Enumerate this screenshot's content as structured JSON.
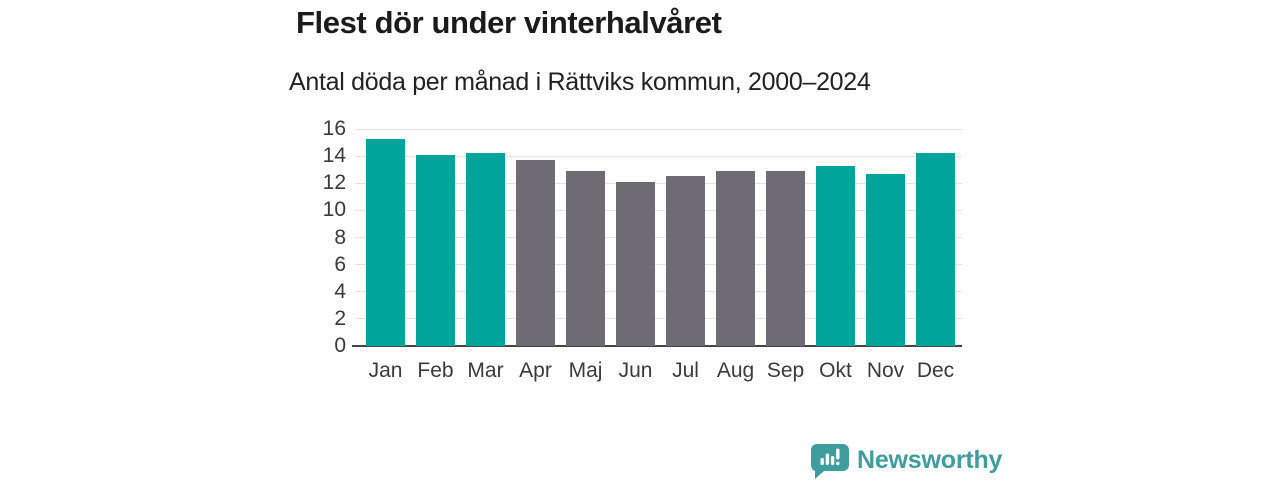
{
  "header": {
    "title": "Flest dör under vinterhalvåret",
    "subtitle": "Antal döda per månad i Rättviks kommun, 2000–2024"
  },
  "chart_data": {
    "type": "bar",
    "title": "Flest dör under vinterhalvåret",
    "subtitle": "Antal döda per månad i Rättviks kommun, 2000–2024",
    "categories": [
      "Jan",
      "Feb",
      "Mar",
      "Apr",
      "Maj",
      "Jun",
      "Jul",
      "Aug",
      "Sep",
      "Okt",
      "Nov",
      "Dec"
    ],
    "values": [
      15.3,
      14.1,
      14.2,
      13.7,
      12.9,
      12.1,
      12.5,
      12.9,
      12.9,
      13.3,
      12.7,
      14.2
    ],
    "bar_colors": [
      "#00a49b",
      "#00a49b",
      "#00a49b",
      "#6e6b74",
      "#6e6b74",
      "#6e6b74",
      "#6e6b74",
      "#6e6b74",
      "#6e6b74",
      "#00a49b",
      "#00a49b",
      "#00a49b"
    ],
    "highlight_color": "#00a49b",
    "muted_color": "#6e6b74",
    "xlabel": "",
    "ylabel": "",
    "ylim": [
      0,
      16
    ],
    "yticks": [
      0,
      2,
      4,
      6,
      8,
      10,
      12,
      14,
      16
    ],
    "grid": true,
    "legend": false
  },
  "branding": {
    "logo_text": "Newsworthy",
    "logo_color": "#3f9d9d",
    "logo_icon": "speech-bubble-bar-chart-exclamation"
  },
  "colors": {
    "background": "#ffffff",
    "gridline": "#e3e3e3",
    "axis_line": "#454547",
    "text": "#3a3a3a"
  }
}
